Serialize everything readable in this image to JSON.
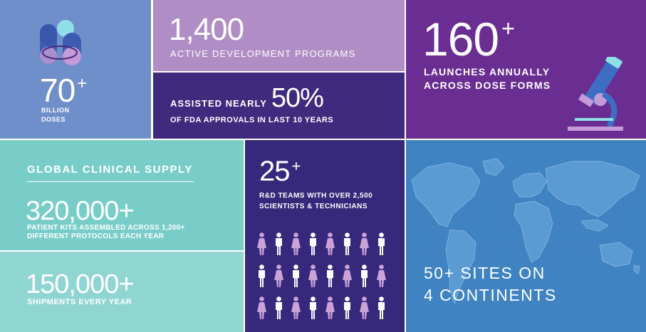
{
  "doses": {
    "value": "70",
    "plus": "+",
    "label_line1": "BILLION",
    "label_line2": "DOSES",
    "icon": "capsules-icon"
  },
  "programs": {
    "value": "1,400",
    "label": "ACTIVE DEVELOPMENT PROGRAMS"
  },
  "fda": {
    "prefix": "ASSISTED NEARLY",
    "value": "50%",
    "label": "OF FDA APPROVALS IN LAST 10 YEARS"
  },
  "launches": {
    "value": "160",
    "plus": "+",
    "label_line1": "LAUNCHES ANNUALLY",
    "label_line2": "ACROSS DOSE FORMS",
    "icon": "microscope-icon"
  },
  "clinical": {
    "heading": "GLOBAL CLINICAL SUPPLY",
    "value": "320,000+",
    "label_line1": "PATIENT KITS ASSEMBLED ACROSS 1,200+",
    "label_line2": "DIFFERENT PROTOCOLS EACH YEAR"
  },
  "shipments": {
    "value": "150,000+",
    "label": "SHIPMENTS EVERY YEAR"
  },
  "rnd": {
    "value": "25",
    "plus": "+",
    "label_line1": "R&D TEAMS WITH OVER 2,500",
    "label_line2": "SCIENTISTS & TECHNICIANS",
    "icon": "people-icon"
  },
  "sites": {
    "line1": "50+ SITES ON",
    "line2": "4 CONTINENTS",
    "icon": "world-map-icon"
  },
  "colors": {
    "man": "#ffffff",
    "woman": "#c9a2d8",
    "accent": "#8fe0e6"
  }
}
